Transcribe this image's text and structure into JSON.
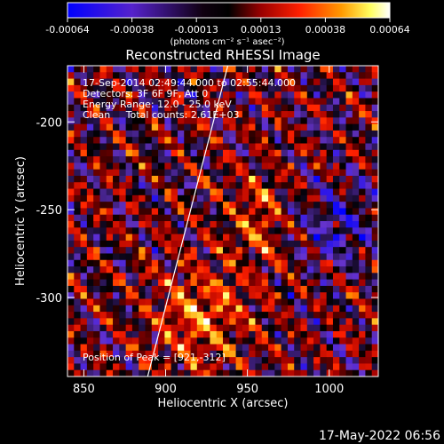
{
  "chart_data": {
    "type": "heatmap",
    "title": "Reconstructed RHESSI Image",
    "xlabel": "Heliocentric X (arcsec)",
    "ylabel": "Heliocentric Y (arcsec)",
    "xlim": [
      840,
      1030
    ],
    "ylim": [
      -345,
      -168
    ],
    "x_ticks": [
      850,
      900,
      950,
      1000
    ],
    "y_ticks": [
      -200,
      -250,
      -300
    ],
    "colorbar": {
      "min": -0.00064,
      "max": 0.00064,
      "ticks": [
        "-0.00064",
        "-0.00038",
        "-0.00013",
        "0.00013",
        "0.00038",
        "0.00064"
      ],
      "unit_label": "(photons cm⁻² s⁻¹ asec⁻²)",
      "colormap": [
        "#0000ff",
        "#6633cc",
        "#000000",
        "#a00000",
        "#ff2000",
        "#ff9000",
        "#ffff60",
        "#ffffff"
      ]
    },
    "annotations": {
      "time_range": "17-Sep-2014 02:49:44.000 to 02:55:44.000",
      "detectors": "Detectors: 3F 6F 9F, Att 0",
      "energy": "Energy Range: 12.0 - 25.0 keV",
      "method": "Clean     Total counts: 2.61E+03",
      "peak": "Position of Peak = [921,-312]"
    },
    "peak_position": [
      921,
      -312
    ],
    "limb_line": [
      [
        889,
        -345
      ],
      [
        938,
        -168
      ]
    ]
  },
  "footer": {
    "date": "17-May-2022 06:56"
  }
}
